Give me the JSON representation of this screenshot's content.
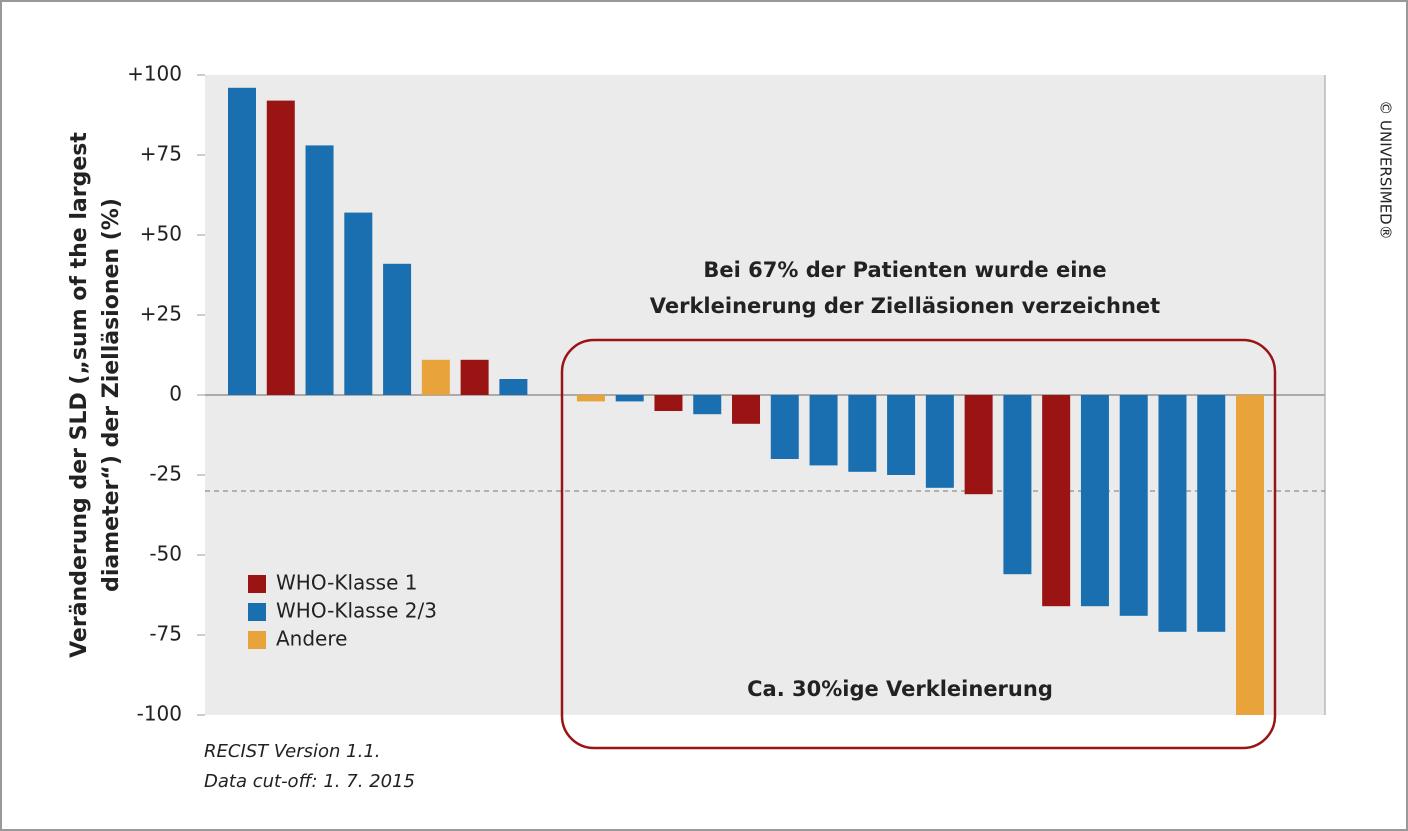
{
  "chart_data": {
    "type": "bar",
    "y_label": [
      "Veränderung der SLD („sum of the largest",
      "diameter“) der Zielläsionen (%)"
    ],
    "annotations": [
      "Bei 67% der Patienten wurde eine",
      "Verkleinerung der Zielläsionen verzeichnet",
      "Ca. 30%ige Verkleinerung"
    ],
    "footnotes": [
      "RECIST Version 1.1.",
      "Data cut-off: 1. 7. 2015"
    ],
    "copyright": "© UNIVERSIMED®",
    "categories": [
      null,
      null,
      null,
      null,
      null,
      null,
      null,
      null,
      null,
      null,
      null,
      null,
      null,
      null,
      null,
      null,
      null,
      null,
      null,
      null,
      null,
      null,
      null,
      null,
      null,
      null,
      null
    ],
    "series": [
      {
        "name": "WHO-Klasse 1",
        "color": "#9b1414",
        "values": [
          null,
          92,
          null,
          null,
          null,
          null,
          11,
          null,
          null,
          null,
          null,
          -5,
          null,
          -9,
          null,
          null,
          null,
          null,
          null,
          -31,
          null,
          -66,
          null,
          null,
          null,
          null,
          null
        ]
      },
      {
        "name": "WHO-Klasse 2/3",
        "color": "#1a6fb0",
        "values": [
          96,
          null,
          78,
          57,
          41,
          null,
          null,
          5,
          null,
          null,
          -2,
          null,
          -6,
          null,
          -20,
          -22,
          -24,
          -25,
          -29,
          null,
          -56,
          null,
          -66,
          -69,
          -74,
          -74,
          null
        ]
      },
      {
        "name": "Andere",
        "color": "#e8a33b",
        "values": [
          null,
          null,
          null,
          null,
          null,
          11,
          null,
          null,
          null,
          -2,
          null,
          null,
          null,
          null,
          null,
          null,
          null,
          null,
          null,
          null,
          null,
          null,
          null,
          null,
          null,
          null,
          -100
        ]
      }
    ],
    "ylim": [
      -100,
      100
    ],
    "yticks": [
      {
        "value": 100,
        "label": "+100"
      },
      {
        "value": 75,
        "label": "+75"
      },
      {
        "value": 50,
        "label": "+50"
      },
      {
        "value": 25,
        "label": "+25"
      },
      0,
      -25,
      -50,
      -75,
      -100
    ],
    "reference_line": -30,
    "legend": "lower left"
  }
}
